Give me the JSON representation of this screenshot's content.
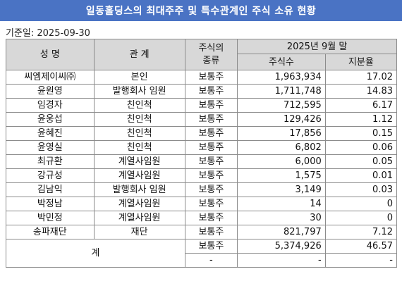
{
  "title": "일동홀딩스의 최대주주 및 특수관계인 주식 소유 현황",
  "base_date": "기준일: 2025-09-30",
  "headers": {
    "name": "성  명",
    "relation": "관  계",
    "stock_type_line1": "주식의",
    "stock_type_line2": "종류",
    "period": "2025년 9월 말",
    "shares": "주식수",
    "ratio": "지분율"
  },
  "rows": [
    {
      "name": "씨엠제이씨㈜",
      "relation": "본인",
      "type": "보통주",
      "shares": "1,963,934",
      "ratio": "17.02"
    },
    {
      "name": "윤원영",
      "relation": "발행회사 임원",
      "type": "보통주",
      "shares": "1,711,748",
      "ratio": "14.83"
    },
    {
      "name": "임경자",
      "relation": "친인척",
      "type": "보통주",
      "shares": "712,595",
      "ratio": "6.17"
    },
    {
      "name": "윤웅섭",
      "relation": "친인척",
      "type": "보통주",
      "shares": "129,426",
      "ratio": "1.12"
    },
    {
      "name": "윤혜진",
      "relation": "친인척",
      "type": "보통주",
      "shares": "17,856",
      "ratio": "0.15"
    },
    {
      "name": "윤영실",
      "relation": "친인척",
      "type": "보통주",
      "shares": "6,802",
      "ratio": "0.06"
    },
    {
      "name": "최규환",
      "relation": "계열사임원",
      "type": "보통주",
      "shares": "6,000",
      "ratio": "0.05"
    },
    {
      "name": "강규성",
      "relation": "계열사임원",
      "type": "보통주",
      "shares": "1,575",
      "ratio": "0.01"
    },
    {
      "name": "김남익",
      "relation": "발행회사 임원",
      "type": "보통주",
      "shares": "3,149",
      "ratio": "0.03"
    },
    {
      "name": "박정남",
      "relation": "계열사임원",
      "type": "보통주",
      "shares": "14",
      "ratio": "0"
    },
    {
      "name": "박민정",
      "relation": "계열사임원",
      "type": "보통주",
      "shares": "30",
      "ratio": "0"
    },
    {
      "name": "송파재단",
      "relation": "재단",
      "type": "보통주",
      "shares": "821,797",
      "ratio": "7.12"
    }
  ],
  "total": {
    "label": "계",
    "rows": [
      {
        "type": "보통주",
        "shares": "5,374,926",
        "ratio": "46.57"
      },
      {
        "type": "-",
        "shares": "-",
        "ratio": "-"
      }
    ]
  }
}
